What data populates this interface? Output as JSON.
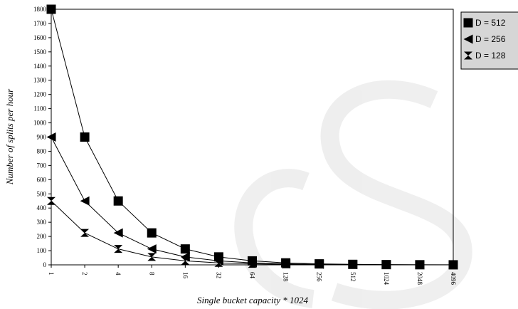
{
  "chart_data": {
    "type": "line",
    "xlabel": "Single bucket capacity * 1024",
    "ylabel": "Number of splits per hour",
    "categories": [
      "1",
      "2",
      "4",
      "8",
      "16",
      "32",
      "64",
      "128",
      "256",
      "512",
      "1024",
      "2048",
      "4096"
    ],
    "ylim": [
      0,
      1800
    ],
    "yticks": [
      0,
      100,
      200,
      300,
      400,
      500,
      600,
      700,
      800,
      900,
      1000,
      1100,
      1200,
      1300,
      1400,
      1500,
      1600,
      1700,
      1800
    ],
    "grid": false,
    "legend_position": "top-right, outside plot",
    "series": [
      {
        "name": "D = 128",
        "marker": "hourglass",
        "values": [
          450,
          225,
          112,
          56,
          28,
          14,
          7,
          3.5,
          1.8,
          0.9,
          0.4,
          0.2,
          0.1
        ]
      },
      {
        "name": "D = 256",
        "marker": "triangle-left",
        "values": [
          900,
          450,
          225,
          112,
          56,
          28,
          14,
          7,
          3.5,
          1.8,
          0.9,
          0.4,
          0.2
        ]
      },
      {
        "name": "D = 512",
        "marker": "square",
        "values": [
          1800,
          900,
          450,
          225,
          112,
          56,
          28,
          14,
          7,
          3.5,
          1.8,
          0.9,
          0.4
        ]
      }
    ]
  }
}
